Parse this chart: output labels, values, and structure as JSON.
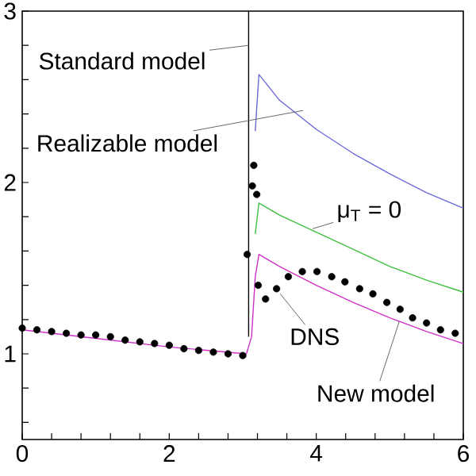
{
  "chart_data": {
    "type": "line",
    "xlim": [
      0,
      6
    ],
    "ylim": [
      0.5,
      3
    ],
    "xticks": [
      0,
      {
        "value": 0.4,
        "label": null
      },
      {
        "value": 0.8,
        "label": null
      },
      {
        "value": 1.2,
        "label": null
      },
      {
        "value": 1.6,
        "label": null
      },
      2,
      {
        "value": 2.4,
        "label": null
      },
      {
        "value": 2.8,
        "label": null
      },
      {
        "value": 3.2,
        "label": null
      },
      {
        "value": 3.6,
        "label": null
      },
      4,
      {
        "value": 4.4,
        "label": null
      },
      {
        "value": 4.8,
        "label": null
      },
      {
        "value": 5.2,
        "label": null
      },
      {
        "value": 5.6,
        "label": null
      },
      6
    ],
    "yticks": [
      {
        "value": 0.6,
        "label": null
      },
      {
        "value": 0.8,
        "label": null
      },
      1,
      {
        "value": 1.2,
        "label": null
      },
      {
        "value": 1.4,
        "label": null
      },
      {
        "value": 1.6,
        "label": null
      },
      {
        "value": 1.8,
        "label": null
      },
      2,
      {
        "value": 2.2,
        "label": null
      },
      {
        "value": 2.4,
        "label": null
      },
      {
        "value": 2.6,
        "label": null
      },
      {
        "value": 2.8,
        "label": null
      },
      3
    ],
    "grid": false,
    "series": [
      {
        "color": "#000000",
        "x": [
          3.08,
          3.08
        ],
        "values": [
          1.1,
          3.0
        ]
      },
      {
        "color": "#6a6ad8",
        "x": [
          3.17,
          3.22,
          3.5,
          4,
          4.5,
          5,
          5.5,
          6
        ],
        "values": [
          2.3,
          2.63,
          2.48,
          2.31,
          2.17,
          2.05,
          1.94,
          1.85
        ]
      },
      {
        "color": "#40c040",
        "x": [
          3.17,
          3.22,
          3.5,
          4,
          4.5,
          5,
          5.5,
          6
        ],
        "values": [
          1.7,
          1.88,
          1.81,
          1.71,
          1.61,
          1.51,
          1.43,
          1.36
        ]
      },
      {
        "color": "#d030c8",
        "x": [
          0,
          1,
          2,
          3.05,
          3.12,
          3.17,
          3.22,
          3.5,
          4,
          4.5,
          5,
          5.5,
          6
        ],
        "values": [
          1.14,
          1.09,
          1.04,
          1.0,
          1.1,
          1.45,
          1.58,
          1.51,
          1.4,
          1.3,
          1.21,
          1.13,
          1.06
        ]
      },
      {
        "type": "scatter",
        "marker": "circle",
        "color": "#000000",
        "x": [
          0,
          0.2,
          0.4,
          0.6,
          0.8,
          1.0,
          1.2,
          1.4,
          1.6,
          1.8,
          2.0,
          2.2,
          2.4,
          2.6,
          2.8,
          3.0,
          3.06,
          3.13,
          3.15,
          3.19,
          3.21,
          3.31,
          3.46,
          3.62,
          3.81,
          4.01,
          4.21,
          4.39,
          4.59,
          4.77,
          4.96,
          5.14,
          5.31,
          5.5,
          5.69,
          5.89
        ],
        "values": [
          1.15,
          1.14,
          1.13,
          1.12,
          1.11,
          1.11,
          1.1,
          1.08,
          1.07,
          1.06,
          1.05,
          1.03,
          1.02,
          1.01,
          1.0,
          0.99,
          1.58,
          1.98,
          2.1,
          1.93,
          1.4,
          1.32,
          1.38,
          1.45,
          1.48,
          1.48,
          1.45,
          1.42,
          1.38,
          1.35,
          1.3,
          1.26,
          1.21,
          1.18,
          1.14,
          1.12
        ]
      }
    ],
    "annotations": [
      {
        "text": "Standard model",
        "x": 3.08,
        "y": 2.8
      },
      {
        "text": "Realizable model",
        "x": 3.82,
        "y": 2.42
      },
      {
        "text": "μ$_{T}$ = 0",
        "x": 3.95,
        "y": 1.73
      },
      {
        "text": "DNS",
        "x": 3.51,
        "y": 1.35
      },
      {
        "text": "New model",
        "x": 5.13,
        "y": 1.19
      }
    ]
  }
}
